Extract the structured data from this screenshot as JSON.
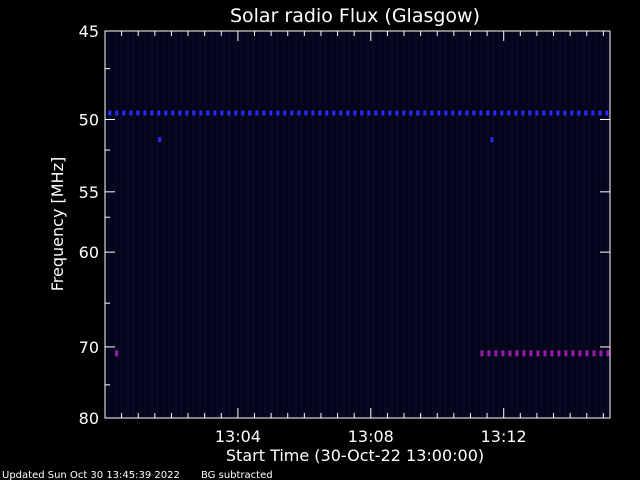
{
  "chart_data": {
    "type": "heatmap",
    "title": "Solar radio Flux (Glasgow)",
    "xlabel": "Start Time (30-Oct-22 13:00:00)",
    "ylabel": "Frequency [MHz]",
    "x_range_minutes": [
      0,
      15.2
    ],
    "y_range_mhz": [
      45,
      80
    ],
    "xticks": [
      {
        "value_min": 4,
        "label": "13:04"
      },
      {
        "value_min": 8,
        "label": "13:08"
      },
      {
        "value_min": 12,
        "label": "13:12"
      }
    ],
    "yticks": [
      {
        "value": 45,
        "label": "45"
      },
      {
        "value": 50,
        "label": "50"
      },
      {
        "value": 55,
        "label": "55"
      },
      {
        "value": 60,
        "label": "60"
      },
      {
        "value": 70,
        "label": "70"
      },
      {
        "value": 80,
        "label": "80"
      }
    ],
    "emission_bands": [
      {
        "freq_mhz": 49.6,
        "intensity": "low",
        "t_start_min": 0.1,
        "t_end_min": 15.2,
        "color": "#2a2aff"
      },
      {
        "freq_mhz": 51.3,
        "intensity": "low",
        "t_start_min": 1.6,
        "t_end_min": 1.65,
        "color": "#2a2aff"
      },
      {
        "freq_mhz": 51.3,
        "intensity": "low",
        "t_start_min": 11.6,
        "t_end_min": 11.65,
        "color": "#2a2aff"
      },
      {
        "freq_mhz": 70.8,
        "intensity": "medium",
        "t_start_min": 0.3,
        "t_end_min": 0.4,
        "color": "#8a1aa8"
      },
      {
        "freq_mhz": 70.8,
        "intensity": "medium",
        "t_start_min": 11.3,
        "t_end_min": 15.2,
        "color": "#9a1aa8"
      }
    ],
    "colors": {
      "background": "#000000",
      "plot_fill": "#05051a",
      "axis": "#ffffff",
      "band_low": "#2a2aff",
      "band_high": "#b0208a"
    }
  },
  "footer": {
    "updated": "Updated Sun Oct 30 13:45:39 2022",
    "note": "BG subtracted"
  }
}
